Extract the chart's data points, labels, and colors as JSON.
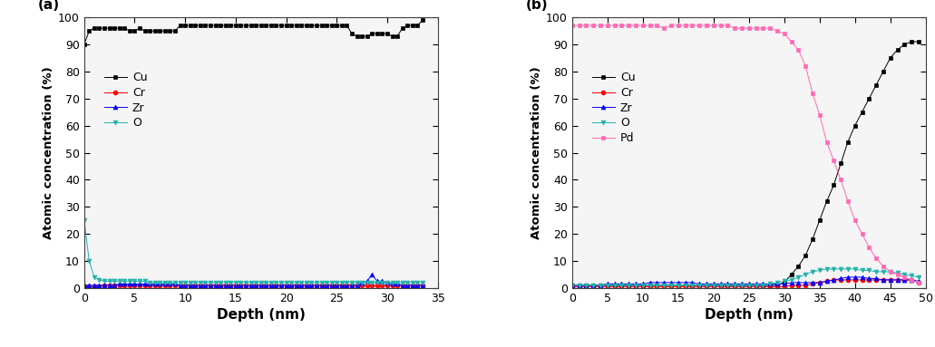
{
  "panel_a": {
    "label": "(a)",
    "xlabel": "Depth (nm)",
    "ylabel": "Atomic concentration (%)",
    "xlim": [
      0,
      35
    ],
    "ylim": [
      0,
      100
    ],
    "xticks": [
      0,
      5,
      10,
      15,
      20,
      25,
      30,
      35
    ],
    "yticks": [
      0,
      10,
      20,
      30,
      40,
      50,
      60,
      70,
      80,
      90,
      100
    ],
    "Cu": {
      "x": [
        0,
        0.5,
        1,
        1.5,
        2,
        2.5,
        3,
        3.5,
        4,
        4.5,
        5,
        5.5,
        6,
        6.5,
        7,
        7.5,
        8,
        8.5,
        9,
        9.5,
        10,
        10.5,
        11,
        11.5,
        12,
        12.5,
        13,
        13.5,
        14,
        14.5,
        15,
        15.5,
        16,
        16.5,
        17,
        17.5,
        18,
        18.5,
        19,
        19.5,
        20,
        20.5,
        21,
        21.5,
        22,
        22.5,
        23,
        23.5,
        24,
        24.5,
        25,
        25.5,
        26,
        26.5,
        27,
        27.5,
        28,
        28.5,
        29,
        29.5,
        30,
        30.5,
        31,
        31.5,
        32,
        32.5,
        33,
        33.5
      ],
      "y": [
        90,
        95,
        96,
        96,
        96,
        96,
        96,
        96,
        96,
        95,
        95,
        96,
        95,
        95,
        95,
        95,
        95,
        95,
        95,
        97,
        97,
        97,
        97,
        97,
        97,
        97,
        97,
        97,
        97,
        97,
        97,
        97,
        97,
        97,
        97,
        97,
        97,
        97,
        97,
        97,
        97,
        97,
        97,
        97,
        97,
        97,
        97,
        97,
        97,
        97,
        97,
        97,
        97,
        94,
        93,
        93,
        93,
        94,
        94,
        94,
        94,
        93,
        93,
        96,
        97,
        97,
        97,
        99
      ],
      "color": "#000000",
      "marker": "s",
      "label": "Cu"
    },
    "Cr": {
      "x": [
        0,
        0.5,
        1,
        1.5,
        2,
        2.5,
        3,
        3.5,
        4,
        4.5,
        5,
        5.5,
        6,
        6.5,
        7,
        7.5,
        8,
        8.5,
        9,
        9.5,
        10,
        10.5,
        11,
        11.5,
        12,
        12.5,
        13,
        13.5,
        14,
        14.5,
        15,
        15.5,
        16,
        16.5,
        17,
        17.5,
        18,
        18.5,
        19,
        19.5,
        20,
        20.5,
        21,
        21.5,
        22,
        22.5,
        23,
        23.5,
        24,
        24.5,
        25,
        25.5,
        26,
        26.5,
        27,
        27.5,
        28,
        28.5,
        29,
        29.5,
        30,
        30.5,
        31,
        31.5,
        32,
        32.5,
        33,
        33.5
      ],
      "y": [
        0.5,
        0.5,
        0.5,
        0.5,
        1,
        1,
        1,
        1,
        1,
        1,
        1,
        1,
        1,
        1,
        1,
        1,
        1,
        1,
        1,
        1,
        1,
        1,
        1,
        1,
        1,
        1,
        1,
        1,
        1,
        1,
        1,
        1,
        1,
        1,
        1,
        1,
        1,
        1,
        1,
        1,
        1,
        1,
        1,
        1,
        1,
        1,
        1,
        1,
        1,
        1,
        1,
        1,
        1,
        1,
        1,
        1,
        1,
        1,
        1,
        1,
        1,
        1,
        1,
        1,
        1,
        1,
        1,
        1
      ],
      "color": "#ff0000",
      "marker": "o",
      "label": "Cr"
    },
    "Zr": {
      "x": [
        0,
        0.5,
        1,
        1.5,
        2,
        2.5,
        3,
        3.5,
        4,
        4.5,
        5,
        5.5,
        6,
        6.5,
        7,
        7.5,
        8,
        8.5,
        9,
        9.5,
        10,
        10.5,
        11,
        11.5,
        12,
        12.5,
        13,
        13.5,
        14,
        14.5,
        15,
        15.5,
        16,
        16.5,
        17,
        17.5,
        18,
        18.5,
        19,
        19.5,
        20,
        20.5,
        21,
        21.5,
        22,
        22.5,
        23,
        23.5,
        24,
        24.5,
        25,
        25.5,
        26,
        26.5,
        27,
        27.5,
        28,
        28.5,
        29,
        29.5,
        30,
        30.5,
        31,
        31.5,
        32,
        32.5,
        33,
        33.5
      ],
      "y": [
        1,
        1,
        1,
        1,
        1,
        1,
        1,
        1.5,
        1.5,
        1.5,
        1.5,
        1.5,
        1.5,
        1.5,
        1.5,
        1.5,
        1.5,
        1.5,
        1.5,
        1,
        1,
        1,
        1,
        1,
        1,
        1,
        1,
        1,
        1,
        1,
        1,
        1,
        1,
        1,
        1,
        1,
        1,
        1,
        1,
        1,
        1,
        1,
        1,
        1,
        1,
        1,
        1,
        1,
        1,
        1,
        1,
        1,
        1,
        1,
        1,
        2,
        2.5,
        5,
        2.5,
        2.5,
        2,
        1.5,
        1.5,
        1,
        1,
        1,
        1,
        1
      ],
      "color": "#0000ff",
      "marker": "^",
      "label": "Zr"
    },
    "O": {
      "x": [
        0,
        0.5,
        1,
        1.5,
        2,
        2.5,
        3,
        3.5,
        4,
        4.5,
        5,
        5.5,
        6,
        6.5,
        7,
        7.5,
        8,
        8.5,
        9,
        9.5,
        10,
        10.5,
        11,
        11.5,
        12,
        12.5,
        13,
        13.5,
        14,
        14.5,
        15,
        15.5,
        16,
        16.5,
        17,
        17.5,
        18,
        18.5,
        19,
        19.5,
        20,
        20.5,
        21,
        21.5,
        22,
        22.5,
        23,
        23.5,
        24,
        24.5,
        25,
        25.5,
        26,
        26.5,
        27,
        27.5,
        28,
        28.5,
        29,
        29.5,
        30,
        30.5,
        31,
        31.5,
        32,
        32.5,
        33,
        33.5
      ],
      "y": [
        25,
        10,
        4,
        3,
        2.5,
        2.5,
        2.5,
        2.5,
        2.5,
        2.5,
        2.5,
        2.5,
        2.5,
        2,
        2,
        2,
        2,
        2,
        2,
        2,
        2,
        2,
        2,
        2,
        2,
        2,
        2,
        2,
        2,
        2,
        2,
        2,
        2,
        2,
        2,
        2,
        2,
        2,
        2,
        2,
        2,
        2,
        2,
        2,
        2,
        2,
        2,
        2,
        2,
        2,
        2,
        2,
        2,
        2,
        2,
        2,
        2,
        2,
        2,
        2,
        2,
        2,
        2,
        2,
        2,
        2,
        2,
        2
      ],
      "color": "#20b2aa",
      "marker": "v",
      "label": "O"
    }
  },
  "panel_b": {
    "label": "(b)",
    "xlabel": "Depth (nm)",
    "ylabel": "Atomic concentration (%)",
    "xlim": [
      0,
      50
    ],
    "ylim": [
      0,
      100
    ],
    "xticks": [
      0,
      5,
      10,
      15,
      20,
      25,
      30,
      35,
      40,
      45,
      50
    ],
    "yticks": [
      0,
      10,
      20,
      30,
      40,
      50,
      60,
      70,
      80,
      90,
      100
    ],
    "Cu": {
      "x": [
        0,
        1,
        2,
        3,
        4,
        5,
        6,
        7,
        8,
        9,
        10,
        11,
        12,
        13,
        14,
        15,
        16,
        17,
        18,
        19,
        20,
        21,
        22,
        23,
        24,
        25,
        26,
        27,
        28,
        29,
        30,
        31,
        32,
        33,
        34,
        35,
        36,
        37,
        38,
        39,
        40,
        41,
        42,
        43,
        44,
        45,
        46,
        47,
        48,
        49
      ],
      "y": [
        1,
        1,
        1,
        1,
        1,
        1,
        1,
        1,
        1,
        1,
        1,
        1,
        1,
        1,
        1,
        1,
        1,
        1,
        1,
        1,
        1,
        1,
        1,
        1,
        1,
        1,
        1,
        1,
        1,
        1,
        2,
        5,
        8,
        12,
        18,
        25,
        32,
        38,
        46,
        54,
        60,
        65,
        70,
        75,
        80,
        85,
        88,
        90,
        91,
        91
      ],
      "color": "#000000",
      "marker": "s",
      "label": "Cu"
    },
    "Cr": {
      "x": [
        0,
        1,
        2,
        3,
        4,
        5,
        6,
        7,
        8,
        9,
        10,
        11,
        12,
        13,
        14,
        15,
        16,
        17,
        18,
        19,
        20,
        21,
        22,
        23,
        24,
        25,
        26,
        27,
        28,
        29,
        30,
        31,
        32,
        33,
        34,
        35,
        36,
        37,
        38,
        39,
        40,
        41,
        42,
        43,
        44,
        45,
        46,
        47,
        48,
        49
      ],
      "y": [
        0.5,
        0.5,
        0.5,
        0.5,
        0.5,
        0.5,
        0.5,
        0.5,
        0.5,
        0.5,
        0.5,
        0.5,
        0.5,
        0.5,
        0.5,
        0.5,
        0.5,
        0.5,
        0.5,
        0.5,
        0.5,
        0.5,
        0.5,
        0.5,
        0.5,
        0.5,
        0.5,
        0.5,
        0.5,
        0.5,
        0.5,
        1,
        1,
        1,
        1.5,
        2,
        2.5,
        3,
        3,
        3,
        3,
        3,
        3,
        3,
        3,
        3,
        3,
        3,
        3,
        2
      ],
      "color": "#ff0000",
      "marker": "o",
      "label": "Cr"
    },
    "Zr": {
      "x": [
        0,
        1,
        2,
        3,
        4,
        5,
        6,
        7,
        8,
        9,
        10,
        11,
        12,
        13,
        14,
        15,
        16,
        17,
        18,
        19,
        20,
        21,
        22,
        23,
        24,
        25,
        26,
        27,
        28,
        29,
        30,
        31,
        32,
        33,
        34,
        35,
        36,
        37,
        38,
        39,
        40,
        41,
        42,
        43,
        44,
        45,
        46,
        47,
        48,
        49
      ],
      "y": [
        1,
        1,
        1,
        1,
        1,
        1.5,
        1.5,
        1.5,
        1.5,
        1.5,
        1.5,
        2,
        2,
        2,
        2,
        2,
        2,
        2,
        1.5,
        1.5,
        1.5,
        1.5,
        1.5,
        1.5,
        1.5,
        1.5,
        1.5,
        1.5,
        1.5,
        1.5,
        1.5,
        2,
        2,
        2,
        2,
        2,
        2.5,
        3,
        3.5,
        4,
        4,
        4,
        3.5,
        3.5,
        3,
        3,
        3,
        3,
        3,
        2.5
      ],
      "color": "#0000ff",
      "marker": "^",
      "label": "Zr"
    },
    "O": {
      "x": [
        0,
        1,
        2,
        3,
        4,
        5,
        6,
        7,
        8,
        9,
        10,
        11,
        12,
        13,
        14,
        15,
        16,
        17,
        18,
        19,
        20,
        21,
        22,
        23,
        24,
        25,
        26,
        27,
        28,
        29,
        30,
        31,
        32,
        33,
        34,
        35,
        36,
        37,
        38,
        39,
        40,
        41,
        42,
        43,
        44,
        45,
        46,
        47,
        48,
        49
      ],
      "y": [
        1,
        1,
        1,
        1,
        1,
        1,
        1,
        1,
        1,
        1,
        1,
        1,
        1,
        1,
        1,
        1,
        1,
        1,
        1,
        1,
        1,
        1,
        1,
        1,
        1,
        1,
        1,
        1,
        1.5,
        2,
        2.5,
        3,
        4,
        5,
        6,
        6.5,
        7,
        7,
        7,
        7,
        7,
        6.5,
        6.5,
        6,
        6,
        6,
        5.5,
        5,
        4.5,
        4
      ],
      "color": "#20b2aa",
      "marker": "v",
      "label": "O"
    },
    "Pd": {
      "x": [
        0,
        1,
        2,
        3,
        4,
        5,
        6,
        7,
        8,
        9,
        10,
        11,
        12,
        13,
        14,
        15,
        16,
        17,
        18,
        19,
        20,
        21,
        22,
        23,
        24,
        25,
        26,
        27,
        28,
        29,
        30,
        31,
        32,
        33,
        34,
        35,
        36,
        37,
        38,
        39,
        40,
        41,
        42,
        43,
        44,
        45,
        46,
        47,
        48,
        49
      ],
      "y": [
        97,
        97,
        97,
        97,
        97,
        97,
        97,
        97,
        97,
        97,
        97,
        97,
        97,
        96,
        97,
        97,
        97,
        97,
        97,
        97,
        97,
        97,
        97,
        96,
        96,
        96,
        96,
        96,
        96,
        95,
        94,
        91,
        88,
        82,
        72,
        64,
        54,
        47,
        40,
        32,
        25,
        20,
        15,
        11,
        8,
        6,
        5,
        4,
        3,
        2
      ],
      "color": "#ff69b4",
      "marker": "s",
      "label": "Pd"
    }
  },
  "fig_width": 10.31,
  "fig_height": 3.83,
  "background_color": "#f0f0f0"
}
